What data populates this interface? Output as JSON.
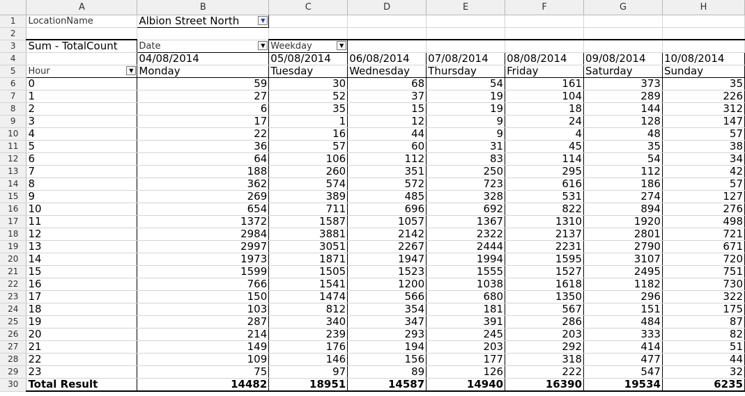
{
  "columns": [
    "A",
    "B",
    "C",
    "D",
    "E",
    "F",
    "G",
    "H"
  ],
  "page_field": {
    "name": "LocationName",
    "value": "Albion Street North"
  },
  "data_field": "Sum - TotalCount",
  "col_fields": [
    "Date",
    "Weekday"
  ],
  "row_field": "Hour",
  "dates": [
    "04/08/2014",
    "05/08/2014",
    "06/08/2014",
    "07/08/2014",
    "08/08/2014",
    "09/08/2014",
    "10/08/2014"
  ],
  "weekdays": [
    "Monday",
    "Tuesday",
    "Wednesday",
    "Thursday",
    "Friday",
    "Saturday",
    "Sunday"
  ],
  "rows": [
    {
      "hour": "0",
      "v": [
        "59",
        "30",
        "68",
        "54",
        "161",
        "373",
        "35"
      ]
    },
    {
      "hour": "1",
      "v": [
        "27",
        "52",
        "37",
        "19",
        "104",
        "289",
        "226"
      ]
    },
    {
      "hour": "2",
      "v": [
        "6",
        "35",
        "15",
        "19",
        "18",
        "144",
        "312"
      ]
    },
    {
      "hour": "3",
      "v": [
        "17",
        "1",
        "12",
        "9",
        "24",
        "128",
        "147"
      ]
    },
    {
      "hour": "4",
      "v": [
        "22",
        "16",
        "44",
        "9",
        "4",
        "48",
        "57"
      ]
    },
    {
      "hour": "5",
      "v": [
        "36",
        "57",
        "60",
        "31",
        "45",
        "35",
        "38"
      ]
    },
    {
      "hour": "6",
      "v": [
        "64",
        "106",
        "112",
        "83",
        "114",
        "54",
        "34"
      ]
    },
    {
      "hour": "7",
      "v": [
        "188",
        "260",
        "351",
        "250",
        "295",
        "112",
        "42"
      ]
    },
    {
      "hour": "8",
      "v": [
        "362",
        "574",
        "572",
        "723",
        "616",
        "186",
        "57"
      ]
    },
    {
      "hour": "9",
      "v": [
        "269",
        "389",
        "485",
        "328",
        "531",
        "274",
        "127"
      ]
    },
    {
      "hour": "10",
      "v": [
        "654",
        "711",
        "696",
        "692",
        "822",
        "894",
        "276"
      ]
    },
    {
      "hour": "11",
      "v": [
        "1372",
        "1587",
        "1057",
        "1367",
        "1310",
        "1920",
        "498"
      ]
    },
    {
      "hour": "12",
      "v": [
        "2984",
        "3881",
        "2142",
        "2322",
        "2137",
        "2801",
        "721"
      ]
    },
    {
      "hour": "13",
      "v": [
        "2997",
        "3051",
        "2267",
        "2444",
        "2231",
        "2790",
        "671"
      ]
    },
    {
      "hour": "14",
      "v": [
        "1973",
        "1871",
        "1947",
        "1994",
        "1595",
        "3107",
        "720"
      ]
    },
    {
      "hour": "15",
      "v": [
        "1599",
        "1505",
        "1523",
        "1555",
        "1527",
        "2495",
        "751"
      ]
    },
    {
      "hour": "16",
      "v": [
        "766",
        "1541",
        "1200",
        "1038",
        "1618",
        "1182",
        "730"
      ]
    },
    {
      "hour": "17",
      "v": [
        "150",
        "1474",
        "566",
        "680",
        "1350",
        "296",
        "322"
      ]
    },
    {
      "hour": "18",
      "v": [
        "103",
        "812",
        "354",
        "181",
        "567",
        "151",
        "175"
      ]
    },
    {
      "hour": "19",
      "v": [
        "287",
        "340",
        "347",
        "391",
        "286",
        "484",
        "87"
      ]
    },
    {
      "hour": "20",
      "v": [
        "214",
        "239",
        "293",
        "245",
        "203",
        "333",
        "82"
      ]
    },
    {
      "hour": "21",
      "v": [
        "149",
        "176",
        "194",
        "203",
        "292",
        "414",
        "51"
      ]
    },
    {
      "hour": "22",
      "v": [
        "109",
        "146",
        "156",
        "177",
        "318",
        "477",
        "44"
      ]
    },
    {
      "hour": "23",
      "v": [
        "75",
        "97",
        "89",
        "126",
        "222",
        "547",
        "32"
      ]
    }
  ],
  "total": {
    "label": "Total Result",
    "v": [
      "14482",
      "18951",
      "14587",
      "14940",
      "16390",
      "19534",
      "6235"
    ]
  },
  "row_numbers": [
    "1",
    "2",
    "3",
    "4",
    "5",
    "6",
    "7",
    "8",
    "9",
    "10",
    "11",
    "12",
    "13",
    "14",
    "15",
    "16",
    "17",
    "18",
    "19",
    "20",
    "21",
    "22",
    "23",
    "24",
    "25",
    "26",
    "27",
    "28",
    "29",
    "30"
  ],
  "icons": {
    "dropdown": "dropdown-arrow-icon"
  }
}
